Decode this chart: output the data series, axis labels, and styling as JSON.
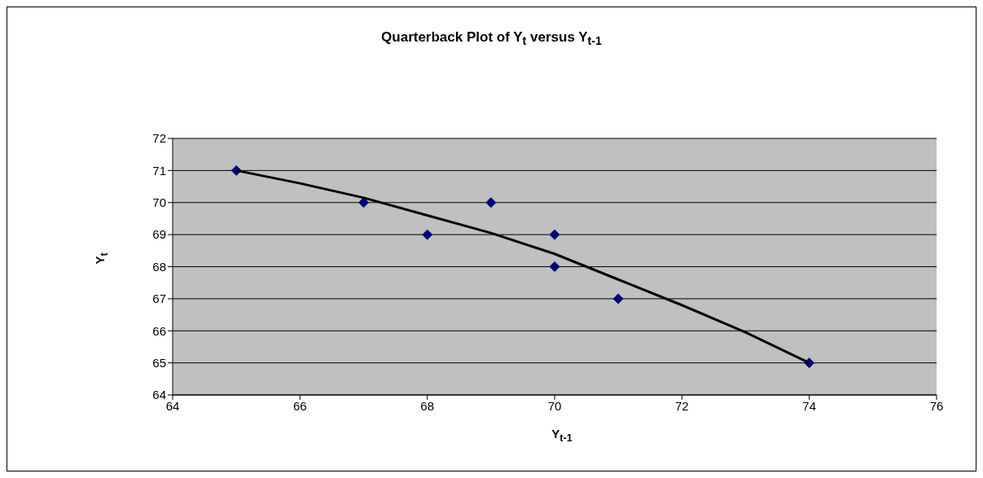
{
  "chart_data": {
    "type": "scatter",
    "title": "Quarterback Plot of Y$_{t}$ versus Y$_{t-1}$",
    "xlabel": "Y$_{t-1}$",
    "ylabel": "Y$_{t}$",
    "series": [
      {
        "color": "#000080",
        "marker": "diamond",
        "x": [
          65,
          67,
          68,
          69,
          70,
          70,
          71,
          74
        ],
        "values": [
          71,
          70,
          69,
          70,
          69,
          68,
          67,
          65
        ]
      },
      {
        "type": "line",
        "color": "#000000",
        "marker": "none",
        "line_style": "solid",
        "x": [
          65,
          66,
          67,
          68,
          69,
          70,
          71,
          72,
          73,
          74
        ],
        "values": [
          71,
          70.6,
          70.15,
          69.6,
          69.05,
          68.4,
          67.6,
          66.8,
          65.95,
          65
        ]
      }
    ],
    "xlim": [
      64,
      76
    ],
    "xticks": [
      64,
      66,
      68,
      70,
      72,
      74,
      76
    ],
    "ylim": [
      64,
      72
    ],
    "yticks": [
      64,
      65,
      66,
      67,
      68,
      69,
      70,
      71,
      72
    ],
    "grid": "y"
  }
}
